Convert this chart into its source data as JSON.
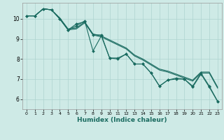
{
  "xlabel": "Humidex (Indice chaleur)",
  "bg_color": "#ceeae6",
  "grid_color": "#aed4d0",
  "line_color": "#1a6b60",
  "xlim": [
    -0.5,
    23.5
  ],
  "ylim": [
    5.5,
    10.8
  ],
  "xticks": [
    0,
    1,
    2,
    3,
    4,
    5,
    6,
    7,
    8,
    9,
    10,
    11,
    12,
    13,
    14,
    15,
    16,
    17,
    18,
    19,
    20,
    21,
    22,
    23
  ],
  "yticks": [
    6,
    7,
    8,
    9,
    10
  ],
  "lines": [
    {
      "x": [
        0,
        1,
        2,
        3,
        4,
        5,
        6,
        7,
        8,
        9,
        10,
        11,
        12,
        13,
        14,
        15,
        16,
        17,
        18,
        19,
        20,
        21,
        22,
        23
      ],
      "y": [
        10.15,
        10.15,
        10.5,
        10.45,
        10.05,
        9.5,
        9.55,
        9.85,
        9.25,
        9.15,
        8.95,
        8.75,
        8.55,
        8.2,
        8.0,
        7.75,
        7.5,
        7.4,
        7.25,
        7.1,
        6.95,
        7.35,
        7.35,
        6.6
      ],
      "has_markers": false
    },
    {
      "x": [
        0,
        1,
        2,
        3,
        4,
        5,
        6,
        7,
        8,
        9,
        10,
        11,
        12,
        13,
        14,
        15,
        16,
        17,
        18,
        19,
        20,
        21,
        22,
        23
      ],
      "y": [
        10.15,
        10.15,
        10.5,
        10.45,
        10.0,
        9.45,
        9.5,
        9.8,
        9.2,
        9.1,
        8.9,
        8.7,
        8.5,
        8.15,
        7.95,
        7.7,
        7.45,
        7.35,
        7.2,
        7.05,
        6.9,
        7.3,
        7.3,
        6.55
      ],
      "has_markers": false
    },
    {
      "x": [
        0,
        1,
        2,
        3,
        4,
        5,
        6,
        7,
        8,
        9,
        10,
        11,
        12,
        13,
        14,
        15,
        16,
        17,
        18,
        19,
        20,
        21,
        22,
        23
      ],
      "y": [
        10.15,
        10.15,
        10.5,
        10.45,
        10.0,
        9.45,
        9.75,
        9.85,
        9.2,
        9.2,
        8.05,
        8.0,
        8.25,
        7.75,
        7.75,
        7.3,
        6.65,
        6.95,
        7.05,
        7.0,
        6.65,
        7.3,
        6.65,
        5.9
      ],
      "has_markers": true
    },
    {
      "x": [
        0,
        1,
        2,
        3,
        4,
        5,
        6,
        7,
        8,
        9,
        10,
        11,
        12,
        13,
        14,
        15,
        16,
        17,
        18,
        19,
        20,
        21,
        22,
        23
      ],
      "y": [
        10.15,
        10.15,
        10.5,
        10.45,
        10.0,
        9.45,
        9.65,
        9.9,
        8.4,
        9.15,
        8.05,
        8.05,
        8.25,
        7.75,
        7.75,
        7.3,
        6.65,
        6.95,
        7.0,
        7.0,
        6.6,
        7.25,
        6.6,
        5.88
      ],
      "has_markers": true
    }
  ]
}
